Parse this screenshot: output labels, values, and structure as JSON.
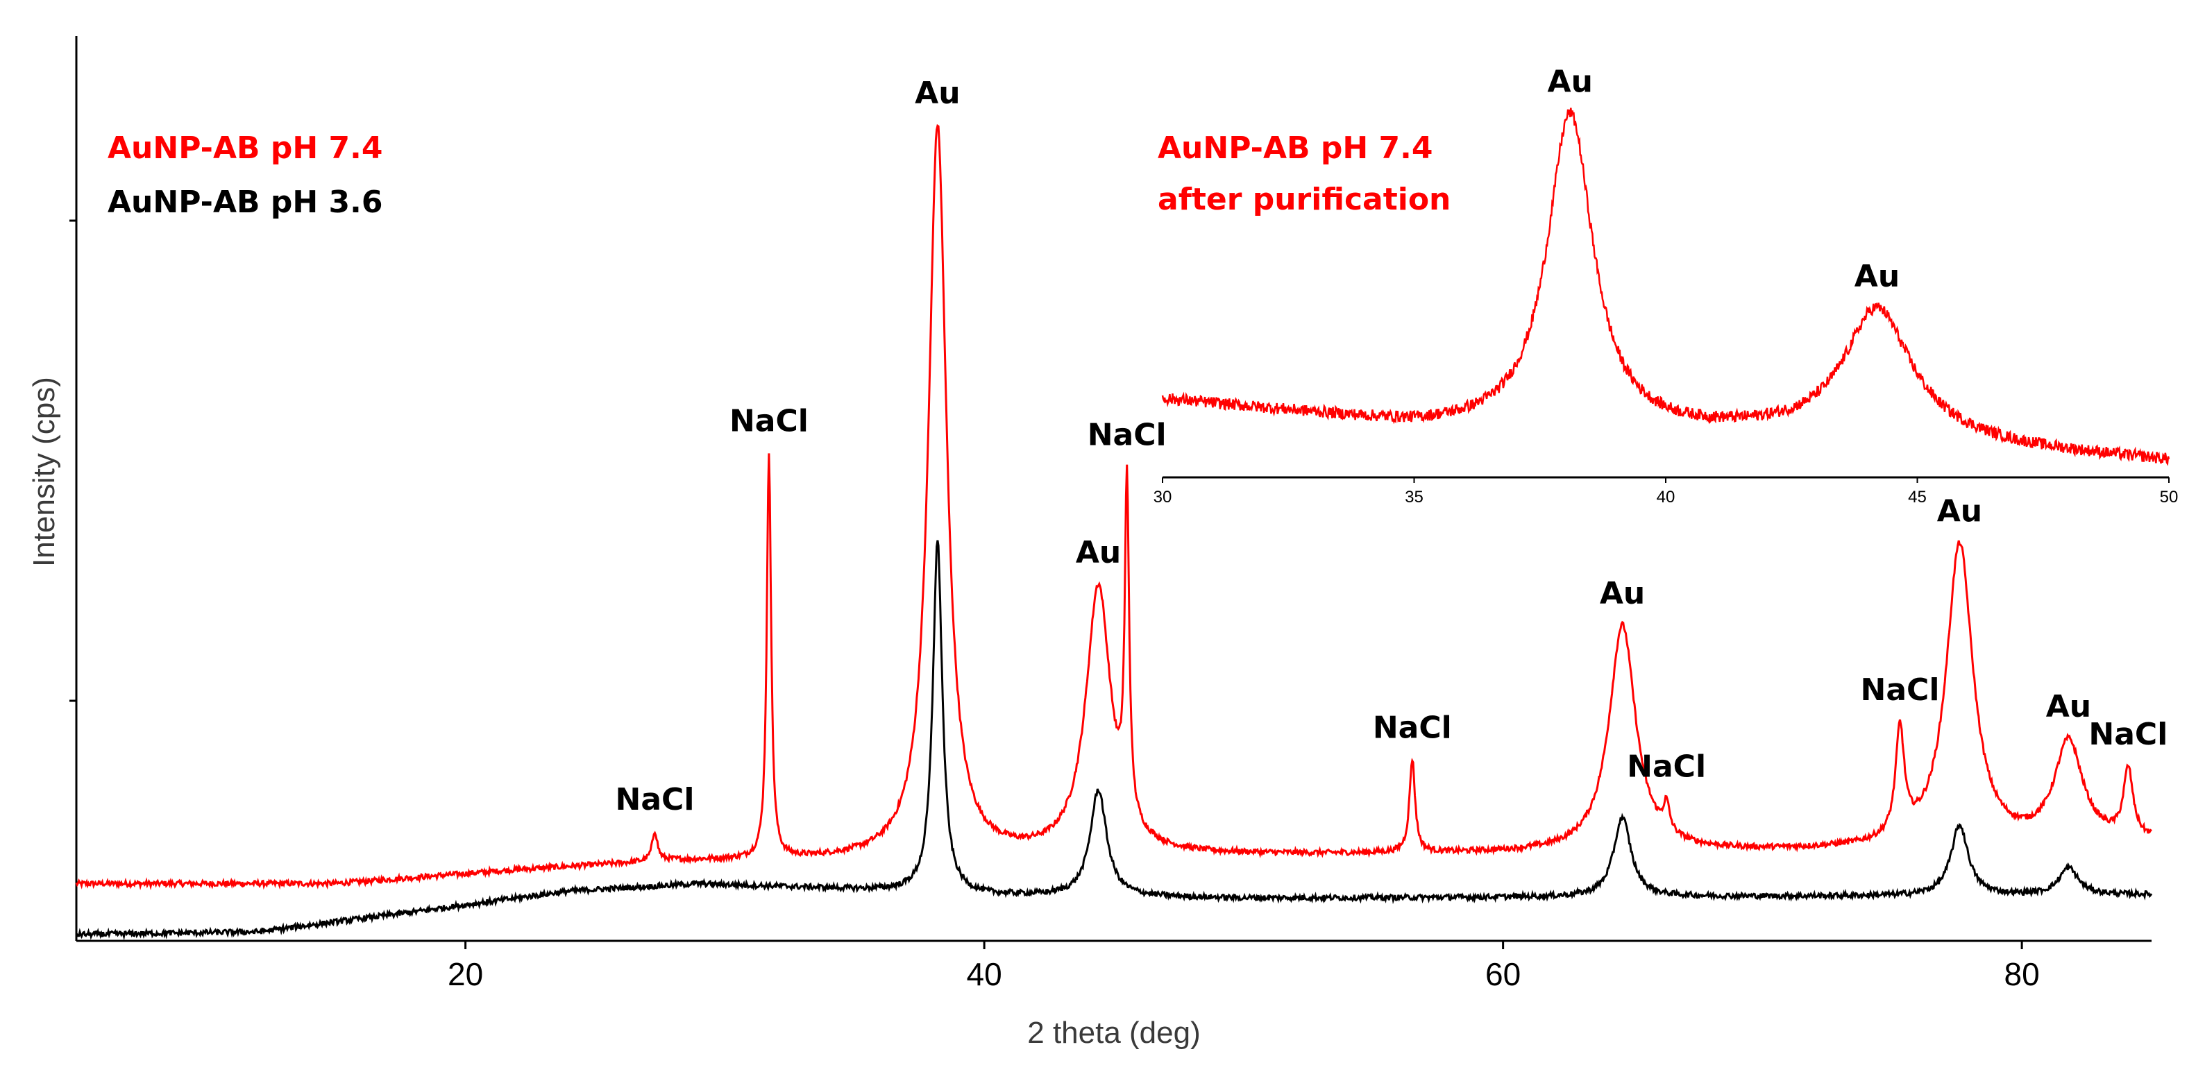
{
  "chart_data": [
    {
      "id": "main",
      "type": "line",
      "xlabel": "2 theta (deg)",
      "ylabel": "Intensity (cps)",
      "xlim": [
        5,
        85
      ],
      "ylim": [
        0,
        1
      ],
      "xticks": [
        20,
        40,
        60,
        80
      ],
      "legend": [
        {
          "label": "AuNP-AB pH 7.4",
          "color": "#ff0000"
        },
        {
          "label": "AuNP-AB pH 3.6",
          "color": "#000000"
        }
      ],
      "series": [
        {
          "name": "AuNP-AB pH 7.4",
          "color": "#ff0000",
          "baseline": [
            [
              5,
              0.063
            ],
            [
              15,
              0.063
            ],
            [
              22,
              0.078
            ],
            [
              28,
              0.088
            ],
            [
              32,
              0.088
            ],
            [
              40,
              0.09
            ],
            [
              50,
              0.094
            ],
            [
              60,
              0.096
            ],
            [
              70,
              0.098
            ],
            [
              80,
              0.102
            ],
            [
              85,
              0.108
            ]
          ],
          "peaks": [
            {
              "x": 27.3,
              "h": 0.033,
              "w": 0.12
            },
            {
              "x": 31.7,
              "h": 0.448,
              "w": 0.1
            },
            {
              "x": 38.2,
              "h": 0.81,
              "w": 0.42
            },
            {
              "x": 44.4,
              "h": 0.296,
              "w": 0.58
            },
            {
              "x": 45.5,
              "h": 0.365,
              "w": 0.1
            },
            {
              "x": 56.5,
              "h": 0.103,
              "w": 0.13
            },
            {
              "x": 64.6,
              "h": 0.251,
              "w": 0.62
            },
            {
              "x": 66.3,
              "h": 0.03,
              "w": 0.14
            },
            {
              "x": 75.3,
              "h": 0.118,
              "w": 0.2
            },
            {
              "x": 77.6,
              "h": 0.335,
              "w": 0.62
            },
            {
              "x": 81.8,
              "h": 0.112,
              "w": 0.66
            },
            {
              "x": 84.1,
              "h": 0.075,
              "w": 0.22
            }
          ]
        },
        {
          "name": "AuNP-AB pH 3.6",
          "color": "#000000",
          "baseline": [
            [
              5,
              0.007
            ],
            [
              12,
              0.01
            ],
            [
              18,
              0.032
            ],
            [
              24,
              0.055
            ],
            [
              29,
              0.063
            ],
            [
              34,
              0.058
            ],
            [
              40,
              0.05
            ],
            [
              50,
              0.047
            ],
            [
              60,
              0.048
            ],
            [
              70,
              0.049
            ],
            [
              80,
              0.05
            ],
            [
              85,
              0.051
            ]
          ],
          "peaks": [
            {
              "x": 38.2,
              "h": 0.39,
              "w": 0.22
            },
            {
              "x": 44.4,
              "h": 0.118,
              "w": 0.38
            },
            {
              "x": 64.6,
              "h": 0.088,
              "w": 0.4
            },
            {
              "x": 77.6,
              "h": 0.078,
              "w": 0.4
            },
            {
              "x": 81.8,
              "h": 0.03,
              "w": 0.45
            }
          ]
        }
      ],
      "annotations": [
        {
          "text": "NaCl",
          "x": 27.3
        },
        {
          "text": "NaCl",
          "x": 31.7
        },
        {
          "text": "Au",
          "x": 38.2
        },
        {
          "text": "Au",
          "x": 44.4
        },
        {
          "text": "NaCl",
          "x": 45.5
        },
        {
          "text": "NaCl",
          "x": 56.5
        },
        {
          "text": "Au",
          "x": 64.6
        },
        {
          "text": "NaCl",
          "x": 66.3
        },
        {
          "text": "NaCl",
          "x": 75.3
        },
        {
          "text": "Au",
          "x": 77.6
        },
        {
          "text": "Au",
          "x": 81.8
        },
        {
          "text": "NaCl",
          "x": 84.1
        }
      ]
    },
    {
      "id": "inset",
      "type": "line",
      "title_lines": [
        "AuNP-AB pH 7.4",
        "after purification"
      ],
      "title_color": "#ff0000",
      "xlim": [
        30,
        50
      ],
      "ylim": [
        0,
        1
      ],
      "xticks": [
        30,
        35,
        40,
        45,
        50
      ],
      "series": [
        {
          "name": "AuNP-AB pH 7.4 after purification",
          "color": "#ff0000",
          "baseline": [
            [
              30,
              0.2
            ],
            [
              33,
              0.16
            ],
            [
              35,
              0.13
            ],
            [
              37,
              0.12
            ],
            [
              40,
              0.11
            ],
            [
              42,
              0.11
            ],
            [
              45,
              0.1
            ],
            [
              47,
              0.07
            ],
            [
              50,
              0.04
            ]
          ],
          "peaks": [
            {
              "x": 38.1,
              "h": 0.82,
              "w": 0.55
            },
            {
              "x": 44.2,
              "h": 0.33,
              "w": 0.8
            }
          ]
        }
      ],
      "annotations": [
        {
          "text": "Au",
          "x": 38.1
        },
        {
          "text": "Au",
          "x": 44.2
        }
      ]
    }
  ]
}
